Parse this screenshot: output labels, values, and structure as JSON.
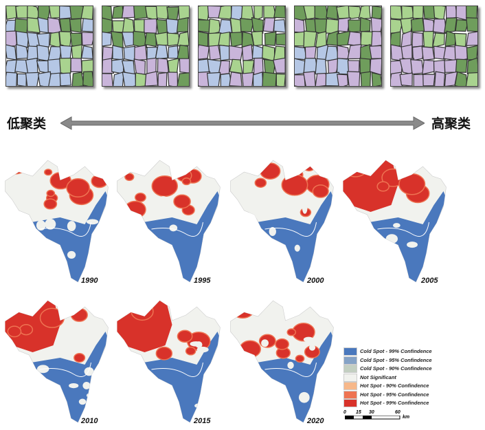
{
  "top_panels": {
    "count": 5,
    "colors": {
      "dark_green": "#6f9d5c",
      "light_green": "#a9d38f",
      "purple": "#c9b5da",
      "blue": "#b5c7e5"
    }
  },
  "axis": {
    "left_label": "低聚类",
    "right_label": "高聚类"
  },
  "maps": [
    {
      "year": "1990"
    },
    {
      "year": "1995"
    },
    {
      "year": "2000"
    },
    {
      "year": "2005"
    },
    {
      "year": "2010"
    },
    {
      "year": "2015"
    },
    {
      "year": "2020"
    }
  ],
  "legend": [
    {
      "label": "Cold Spot - 99% Confindence",
      "color": "#4a78bd"
    },
    {
      "label": "Cold Spot - 95% Confindence",
      "color": "#85a2c6"
    },
    {
      "label": "Cold Spot - 90% Confindence",
      "color": "#c3cfc1"
    },
    {
      "label": "Not Significant",
      "color": "#f1f2ee"
    },
    {
      "label": "Hot Spot - 90% Confindence",
      "color": "#f7b88a"
    },
    {
      "label": "Hot Spot - 95% Confindence",
      "color": "#ee7352"
    },
    {
      "label": "Hot Spot - 99% Confindence",
      "color": "#d8322a"
    }
  ],
  "scale": {
    "ticks": [
      "0",
      "15",
      "30",
      "60"
    ],
    "unit": "km"
  }
}
